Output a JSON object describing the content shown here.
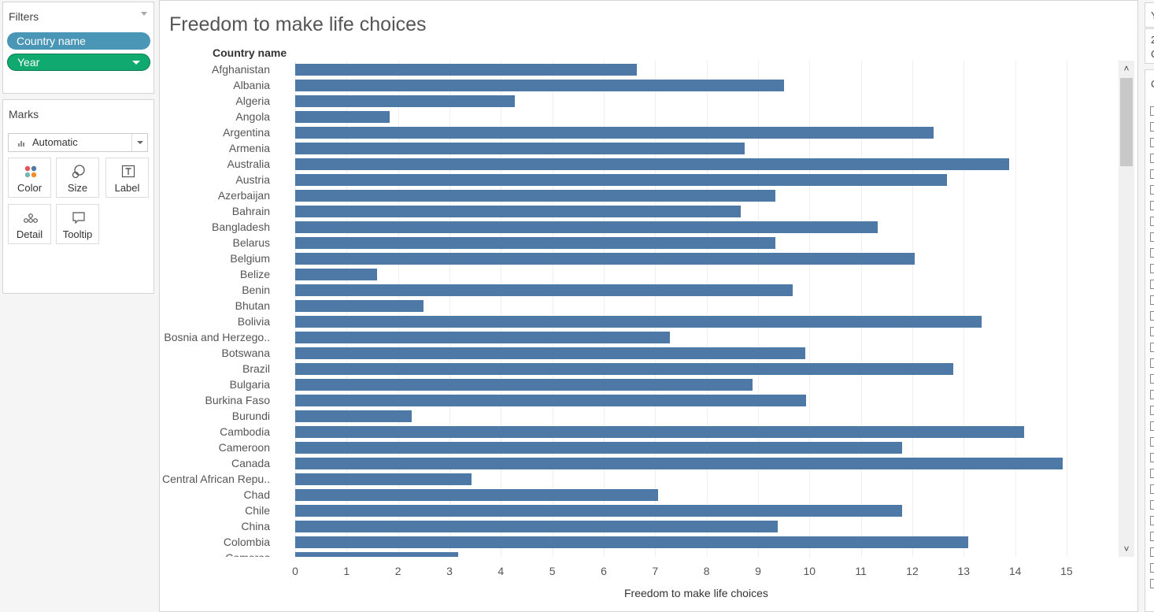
{
  "filters": {
    "title": "Filters",
    "pills": [
      {
        "label": "Country name"
      },
      {
        "label": "Year"
      }
    ]
  },
  "marks": {
    "title": "Marks",
    "mark_type": "Automatic",
    "buttons": [
      "Color",
      "Size",
      "Label",
      "Detail",
      "Tooltip"
    ]
  },
  "colors": {
    "bar": "#4e79a7",
    "pill_country": "#4a96b7",
    "pill_year": "#10a96f"
  },
  "right_panel": {
    "header": "Y",
    "line1": "2",
    "line2": "C",
    "section": "C"
  },
  "chart_data": {
    "type": "bar",
    "orientation": "horizontal",
    "title": "Freedom to make life choices",
    "row_header": "Country name",
    "xlabel": "Freedom to make life choices",
    "xlim": [
      0,
      15.9
    ],
    "xticks": [
      0,
      1,
      2,
      3,
      4,
      5,
      6,
      7,
      8,
      9,
      10,
      11,
      12,
      13,
      14,
      15
    ],
    "grid": true,
    "categories": [
      "Afghanistan",
      "Albania",
      "Algeria",
      "Angola",
      "Argentina",
      "Armenia",
      "Australia",
      "Austria",
      "Azerbaijan",
      "Bahrain",
      "Bangladesh",
      "Belarus",
      "Belgium",
      "Belize",
      "Benin",
      "Bhutan",
      "Bolivia",
      "Bosnia and Herzego..",
      "Botswana",
      "Brazil",
      "Bulgaria",
      "Burkina Faso",
      "Burundi",
      "Cambodia",
      "Cameroon",
      "Canada",
      "Central African Repu..",
      "Chad",
      "Chile",
      "China",
      "Colombia",
      "Comoros"
    ],
    "values": [
      6.65,
      9.5,
      4.27,
      1.83,
      12.42,
      8.74,
      13.88,
      12.67,
      9.33,
      8.67,
      11.33,
      9.33,
      12.04,
      1.59,
      9.67,
      2.5,
      13.34,
      7.28,
      9.92,
      12.8,
      8.89,
      9.93,
      2.27,
      14.18,
      11.8,
      14.93,
      3.43,
      7.05,
      11.8,
      9.39,
      13.08,
      3.17
    ]
  }
}
